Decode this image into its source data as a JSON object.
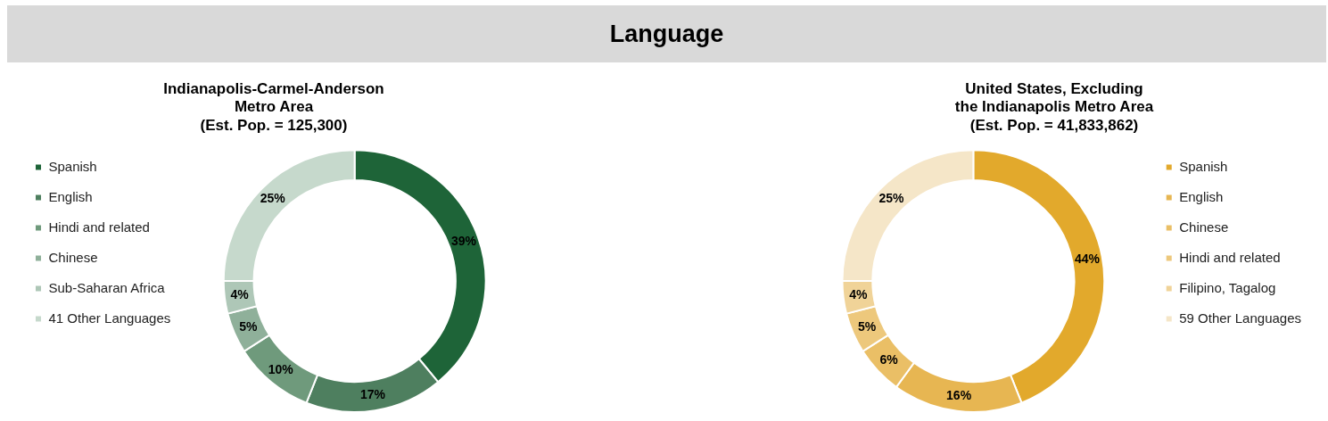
{
  "chart_data": [
    {
      "type": "other",
      "title": "Language"
    },
    {
      "type": "donut",
      "title": "Indianapolis-Carmel-Anderson\nMetro Area\n(Est. Pop. = 125,300)",
      "legend": "left",
      "categories": [
        "Spanish",
        "English",
        "Hindi and related",
        "Chinese",
        "Sub-Saharan Africa",
        "41 Other Languages"
      ],
      "values": [
        39,
        17,
        10,
        5,
        4,
        25
      ],
      "value_labels": [
        "39%",
        "17%",
        "10%",
        "5%",
        "4%",
        "25%"
      ],
      "colors": [
        "#1e6438",
        "#4e7f5f",
        "#6f9a7c",
        "#8fb09a",
        "#aec7b7",
        "#c6d9cc"
      ]
    },
    {
      "type": "donut",
      "title": "United States, Excluding\nthe Indianapolis Metro Area\n(Est. Pop. = 41,833,862)",
      "legend": "right",
      "categories": [
        "Spanish",
        "English",
        "Chinese",
        "Hindi and related",
        "Filipino, Tagalog",
        "59 Other Languages"
      ],
      "values": [
        44,
        16,
        6,
        5,
        4,
        25
      ],
      "value_labels": [
        "44%",
        "16%",
        "6%",
        "5%",
        "4%",
        "25%"
      ],
      "colors": [
        "#e2a92c",
        "#e7b652",
        "#eabf66",
        "#edc87c",
        "#f0d398",
        "#f5e6c8"
      ]
    }
  ]
}
